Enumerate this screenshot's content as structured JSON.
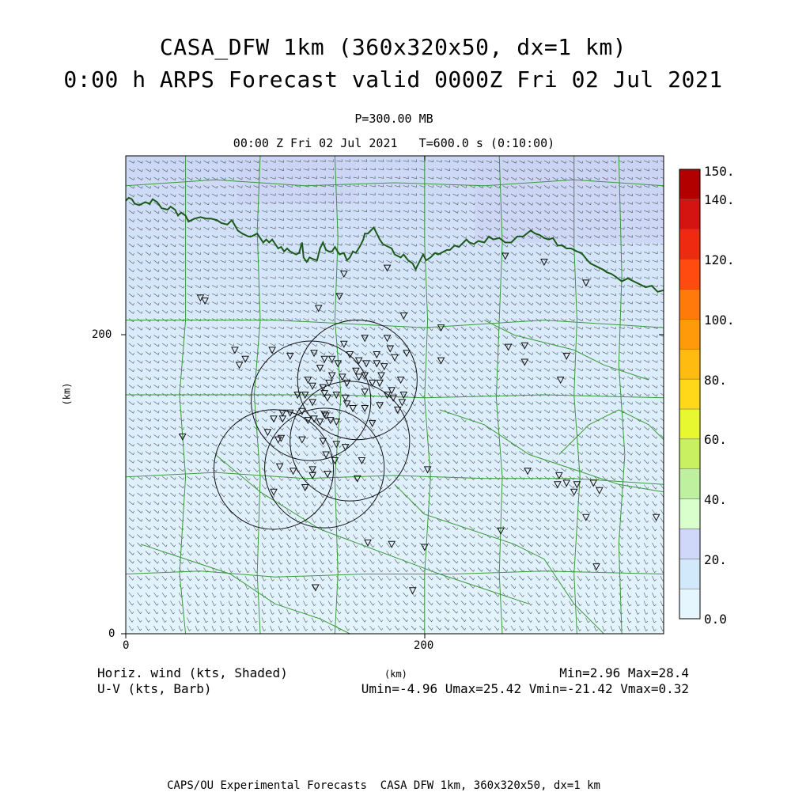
{
  "title_line1": "CASA_DFW 1km (360x320x50, dx=1 km)",
  "title_line2": "0:00 h ARPS Forecast valid 0000Z Fri 02 Jul 2021",
  "pressure_level": "P=300.00 MB",
  "time_line": "00:00 Z Fri 02 Jul 2021   T=600.0 s (0:10:00)",
  "axes": {
    "x_label": "(km)",
    "y_label": "(km)",
    "x_ticks": [
      "0",
      "200"
    ],
    "y_ticks": [
      "0",
      "200"
    ],
    "x_range_km": [
      0,
      360
    ],
    "y_range_km": [
      0,
      320
    ]
  },
  "colorbar": {
    "labels": [
      "150.",
      "140.",
      "120.",
      "100.",
      "80.",
      "60.",
      "40.",
      "20.",
      "0.0"
    ],
    "bins": [
      {
        "from": 0,
        "to": 10,
        "color": "#e6f6ff"
      },
      {
        "from": 10,
        "to": 20,
        "color": "#d2e8fb"
      },
      {
        "from": 20,
        "to": 30,
        "color": "#cfd8f8"
      },
      {
        "from": 30,
        "to": 40,
        "color": "#d8ffcc"
      },
      {
        "from": 40,
        "to": 50,
        "color": "#bff0a0"
      },
      {
        "from": 50,
        "to": 60,
        "color": "#c8f060"
      },
      {
        "from": 60,
        "to": 70,
        "color": "#e8f830"
      },
      {
        "from": 70,
        "to": 80,
        "color": "#ffd81a"
      },
      {
        "from": 80,
        "to": 90,
        "color": "#ffbb10"
      },
      {
        "from": 90,
        "to": 100,
        "color": "#ff9a0a"
      },
      {
        "from": 100,
        "to": 110,
        "color": "#ff7a0a"
      },
      {
        "from": 110,
        "to": 120,
        "color": "#ff4a10"
      },
      {
        "from": 120,
        "to": 130,
        "color": "#ee2a10"
      },
      {
        "from": 130,
        "to": 140,
        "color": "#d41410"
      },
      {
        "from": 140,
        "to": 150,
        "color": "#b20000"
      }
    ]
  },
  "field_label": "Horiz. wind (kts, Shaded)",
  "barb_label": "U-V (kts, Barb)",
  "min_max": "Min=2.96 Max=28.4",
  "uv_range": "Umin=-4.96 Umax=25.42 Vmin=-21.42 Vmax=0.32",
  "footer": "CAPS/OU Experimental Forecasts  CASA DFW 1km, 360x320x50, dx=1 km",
  "colors": {
    "state_border": "#1a5a1a",
    "county_lines": "#3a9a3a",
    "barb": "#222222"
  },
  "radar_rings_km": [
    {
      "x": 155,
      "y": 170,
      "r": 40
    },
    {
      "x": 124,
      "y": 156,
      "r": 40
    },
    {
      "x": 150,
      "y": 129,
      "r": 40
    },
    {
      "x": 99,
      "y": 110,
      "r": 40
    },
    {
      "x": 133,
      "y": 111,
      "r": 40
    }
  ],
  "stations_km": [
    [
      146,
      194
    ],
    [
      160,
      198
    ],
    [
      175,
      198
    ],
    [
      177,
      191
    ],
    [
      188,
      188
    ],
    [
      110,
      186
    ],
    [
      126,
      188
    ],
    [
      150,
      187
    ],
    [
      168,
      187
    ],
    [
      180,
      185
    ],
    [
      133,
      184
    ],
    [
      138,
      184
    ],
    [
      142,
      181
    ],
    [
      156,
      183
    ],
    [
      168,
      181
    ],
    [
      161,
      181
    ],
    [
      173,
      179
    ],
    [
      154,
      176
    ],
    [
      130,
      178
    ],
    [
      122,
      170
    ],
    [
      138,
      173
    ],
    [
      145,
      172
    ],
    [
      156,
      172
    ],
    [
      160,
      173
    ],
    [
      171,
      173
    ],
    [
      165,
      168
    ],
    [
      170,
      168
    ],
    [
      184,
      170
    ],
    [
      125,
      166
    ],
    [
      132,
      165
    ],
    [
      136,
      168
    ],
    [
      148,
      168
    ],
    [
      160,
      162
    ],
    [
      178,
      163
    ],
    [
      115,
      160
    ],
    [
      120,
      160
    ],
    [
      133,
      161
    ],
    [
      141,
      160
    ],
    [
      147,
      158
    ],
    [
      175,
      160
    ],
    [
      179,
      158
    ],
    [
      186,
      160
    ],
    [
      133,
      147
    ],
    [
      135,
      158
    ],
    [
      125,
      155
    ],
    [
      118,
      149
    ],
    [
      148,
      154
    ],
    [
      152,
      151
    ],
    [
      160,
      151
    ],
    [
      170,
      153
    ],
    [
      182,
      150
    ],
    [
      185,
      155
    ],
    [
      105,
      148
    ],
    [
      110,
      148
    ],
    [
      105,
      144
    ],
    [
      99,
      144
    ],
    [
      122,
      143
    ],
    [
      126,
      144
    ],
    [
      130,
      142
    ],
    [
      134,
      146
    ],
    [
      137,
      143
    ],
    [
      141,
      142
    ],
    [
      165,
      141
    ],
    [
      95,
      135
    ],
    [
      104,
      131
    ],
    [
      102,
      130
    ],
    [
      118,
      130
    ],
    [
      132,
      129
    ],
    [
      141,
      127
    ],
    [
      147,
      125
    ],
    [
      134,
      120
    ],
    [
      140,
      116
    ],
    [
      158,
      116
    ],
    [
      103,
      112
    ],
    [
      112,
      109
    ],
    [
      125,
      110
    ],
    [
      155,
      104
    ],
    [
      125,
      106
    ],
    [
      135,
      107
    ],
    [
      120,
      98
    ],
    [
      99,
      95
    ],
    [
      50,
      225
    ],
    [
      53,
      223
    ],
    [
      73,
      190
    ],
    [
      80,
      184
    ],
    [
      76,
      180
    ],
    [
      98,
      190
    ],
    [
      129,
      218
    ],
    [
      143,
      226
    ],
    [
      146,
      241
    ],
    [
      175,
      245
    ],
    [
      186,
      213
    ],
    [
      211,
      183
    ],
    [
      267,
      193
    ],
    [
      267,
      182
    ],
    [
      295,
      186
    ],
    [
      211,
      205
    ],
    [
      254,
      253
    ],
    [
      280,
      249
    ],
    [
      308,
      235
    ],
    [
      256,
      192
    ],
    [
      291,
      170
    ],
    [
      269,
      109
    ],
    [
      290,
      106
    ],
    [
      289,
      100
    ],
    [
      295,
      101
    ],
    [
      302,
      100
    ],
    [
      313,
      101
    ],
    [
      300,
      95
    ],
    [
      317,
      96
    ],
    [
      308,
      78
    ],
    [
      315,
      45
    ],
    [
      355,
      78
    ],
    [
      251,
      69
    ],
    [
      200,
      58
    ],
    [
      178,
      60
    ],
    [
      127,
      31
    ],
    [
      192,
      29
    ],
    [
      162,
      61
    ],
    [
      202,
      110
    ],
    [
      38,
      132
    ]
  ],
  "state_border_km": [
    [
      0,
      290
    ],
    [
      2,
      292
    ],
    [
      4,
      291
    ],
    [
      6,
      288
    ],
    [
      9,
      287
    ],
    [
      13,
      289
    ],
    [
      16,
      288
    ],
    [
      18,
      291
    ],
    [
      21,
      289
    ],
    [
      24,
      285
    ],
    [
      28,
      284
    ],
    [
      30,
      286
    ],
    [
      33,
      284
    ],
    [
      35,
      280
    ],
    [
      37,
      282
    ],
    [
      40,
      280
    ],
    [
      42,
      276
    ],
    [
      44,
      277
    ],
    [
      46,
      278
    ],
    [
      50,
      279
    ],
    [
      54,
      278
    ],
    [
      57,
      278
    ],
    [
      61,
      277
    ],
    [
      64,
      275
    ],
    [
      68,
      274
    ],
    [
      71,
      277
    ],
    [
      75,
      270
    ],
    [
      78,
      268
    ],
    [
      82,
      266
    ],
    [
      84,
      266
    ],
    [
      88,
      268
    ],
    [
      92,
      262
    ],
    [
      94,
      264
    ],
    [
      96,
      262
    ],
    [
      98,
      264
    ],
    [
      102,
      258
    ],
    [
      104,
      259
    ],
    [
      106,
      256
    ],
    [
      108,
      258
    ],
    [
      110,
      256
    ],
    [
      114,
      254
    ],
    [
      116,
      255
    ],
    [
      118,
      262
    ],
    [
      119,
      252
    ],
    [
      121,
      249
    ],
    [
      123,
      252
    ],
    [
      125,
      251
    ],
    [
      128,
      250
    ],
    [
      130,
      258
    ],
    [
      132,
      262
    ],
    [
      134,
      257
    ],
    [
      136,
      256
    ],
    [
      138,
      256
    ],
    [
      140,
      259
    ],
    [
      143,
      254
    ],
    [
      146,
      255
    ],
    [
      148,
      250
    ],
    [
      150,
      252
    ],
    [
      152,
      256
    ],
    [
      154,
      255
    ],
    [
      157,
      260
    ],
    [
      159,
      264
    ],
    [
      160,
      268
    ],
    [
      162,
      268
    ],
    [
      164,
      270
    ],
    [
      166,
      272
    ],
    [
      168,
      268
    ],
    [
      170,
      264
    ],
    [
      172,
      261
    ],
    [
      176,
      259
    ],
    [
      178,
      258
    ],
    [
      180,
      254
    ],
    [
      184,
      252
    ],
    [
      186,
      254
    ],
    [
      189,
      250
    ],
    [
      192,
      248
    ],
    [
      194,
      244
    ],
    [
      196,
      248
    ],
    [
      199,
      254
    ],
    [
      201,
      250
    ],
    [
      204,
      252
    ],
    [
      207,
      255
    ],
    [
      209,
      254
    ],
    [
      213,
      256
    ],
    [
      215,
      257
    ],
    [
      217,
      257
    ],
    [
      220,
      260
    ],
    [
      223,
      259
    ],
    [
      226,
      262
    ],
    [
      228,
      264
    ],
    [
      230,
      262
    ],
    [
      233,
      261
    ],
    [
      236,
      263
    ],
    [
      240,
      262
    ],
    [
      243,
      266
    ],
    [
      246,
      264
    ],
    [
      250,
      265
    ],
    [
      254,
      262
    ],
    [
      258,
      262
    ],
    [
      262,
      266
    ],
    [
      266,
      266
    ],
    [
      271,
      270
    ],
    [
      274,
      268
    ],
    [
      277,
      267
    ],
    [
      280,
      265
    ],
    [
      283,
      264
    ],
    [
      286,
      265
    ],
    [
      289,
      260
    ],
    [
      292,
      260
    ],
    [
      295,
      258
    ],
    [
      298,
      258
    ],
    [
      302,
      256
    ],
    [
      305,
      255
    ],
    [
      309,
      250
    ],
    [
      311,
      248
    ],
    [
      315,
      246
    ],
    [
      319,
      244
    ],
    [
      322,
      242
    ],
    [
      325,
      241
    ],
    [
      328,
      239
    ],
    [
      332,
      236
    ],
    [
      336,
      238
    ],
    [
      340,
      236
    ],
    [
      344,
      234
    ],
    [
      348,
      232
    ],
    [
      352,
      233
    ],
    [
      356,
      229
    ],
    [
      360,
      230
    ]
  ],
  "county_lines_km": [
    [
      [
        0,
        300
      ],
      [
        60,
        304
      ],
      [
        120,
        300
      ],
      [
        180,
        302
      ],
      [
        240,
        300
      ],
      [
        300,
        304
      ],
      [
        360,
        300
      ]
    ],
    [
      [
        0,
        160
      ],
      [
        90,
        160
      ],
      [
        140,
        160
      ],
      [
        200,
        158
      ],
      [
        280,
        160
      ],
      [
        360,
        158
      ]
    ],
    [
      [
        0,
        105
      ],
      [
        60,
        108
      ],
      [
        120,
        104
      ],
      [
        180,
        106
      ],
      [
        240,
        104
      ],
      [
        300,
        104
      ],
      [
        360,
        100
      ]
    ],
    [
      [
        0,
        40
      ],
      [
        50,
        42
      ],
      [
        100,
        38
      ],
      [
        160,
        40
      ],
      [
        220,
        40
      ],
      [
        280,
        42
      ],
      [
        360,
        40
      ]
    ],
    [
      [
        0,
        210
      ],
      [
        100,
        210
      ],
      [
        200,
        205
      ],
      [
        280,
        210
      ],
      [
        360,
        205
      ]
    ],
    [
      [
        40,
        320
      ],
      [
        40,
        210
      ],
      [
        36,
        160
      ],
      [
        40,
        105
      ],
      [
        36,
        40
      ],
      [
        40,
        0
      ]
    ],
    [
      [
        90,
        320
      ],
      [
        88,
        270
      ],
      [
        90,
        210
      ],
      [
        86,
        160
      ],
      [
        90,
        105
      ],
      [
        88,
        40
      ],
      [
        90,
        0
      ]
    ],
    [
      [
        140,
        320
      ],
      [
        142,
        265
      ],
      [
        140,
        210
      ],
      [
        144,
        160
      ],
      [
        140,
        105
      ],
      [
        142,
        40
      ],
      [
        140,
        0
      ]
    ],
    [
      [
        200,
        320
      ],
      [
        200,
        262
      ],
      [
        202,
        210
      ],
      [
        200,
        158
      ],
      [
        204,
        105
      ],
      [
        200,
        40
      ],
      [
        200,
        0
      ]
    ],
    [
      [
        250,
        320
      ],
      [
        252,
        262
      ],
      [
        250,
        210
      ],
      [
        248,
        158
      ],
      [
        252,
        105
      ],
      [
        250,
        40
      ],
      [
        252,
        0
      ]
    ],
    [
      [
        300,
        320
      ],
      [
        300,
        260
      ],
      [
        302,
        210
      ],
      [
        300,
        160
      ],
      [
        304,
        105
      ],
      [
        300,
        40
      ],
      [
        302,
        0
      ]
    ],
    [
      [
        330,
        320
      ],
      [
        332,
        240
      ],
      [
        330,
        180
      ],
      [
        334,
        120
      ],
      [
        330,
        60
      ],
      [
        332,
        0
      ]
    ],
    [
      [
        60,
        120
      ],
      [
        90,
        95
      ],
      [
        130,
        70
      ],
      [
        170,
        55
      ],
      [
        210,
        40
      ],
      [
        240,
        30
      ],
      [
        270,
        20
      ]
    ],
    [
      [
        180,
        100
      ],
      [
        200,
        80
      ],
      [
        230,
        70
      ],
      [
        260,
        60
      ],
      [
        280,
        50
      ],
      [
        300,
        20
      ],
      [
        320,
        0
      ]
    ],
    [
      [
        240,
        210
      ],
      [
        260,
        200
      ],
      [
        280,
        195
      ],
      [
        300,
        190
      ],
      [
        320,
        180
      ],
      [
        350,
        170
      ]
    ],
    [
      [
        210,
        150
      ],
      [
        240,
        140
      ],
      [
        270,
        120
      ],
      [
        300,
        110
      ],
      [
        330,
        100
      ],
      [
        360,
        95
      ]
    ],
    [
      [
        10,
        60
      ],
      [
        40,
        50
      ],
      [
        70,
        40
      ],
      [
        100,
        20
      ],
      [
        130,
        10
      ],
      [
        150,
        0
      ]
    ],
    [
      [
        290,
        120
      ],
      [
        310,
        140
      ],
      [
        330,
        150
      ],
      [
        350,
        140
      ],
      [
        360,
        130
      ]
    ]
  ]
}
